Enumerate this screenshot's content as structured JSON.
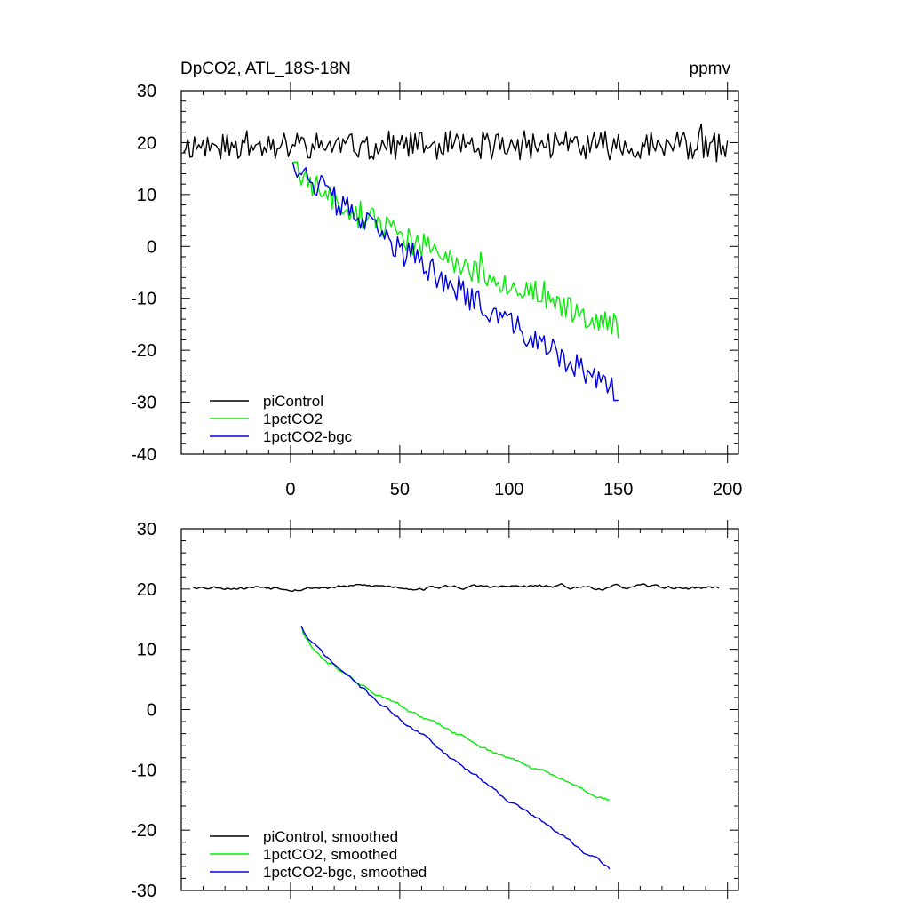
{
  "title_left": "DpCO2, ATL_18S-18N",
  "title_right": "ppmv",
  "chart_data": [
    {
      "type": "line",
      "name": "raw",
      "xlim": [
        -50,
        205
      ],
      "ylim": [
        -40,
        30
      ],
      "y_ticks": [
        30,
        20,
        10,
        0,
        -10,
        -20,
        -30,
        -40
      ],
      "y_tick_labels": [
        "30",
        "20",
        "10",
        "0",
        "-10",
        "-20",
        "-30",
        "-40"
      ],
      "x_ticks": [
        0,
        50,
        100,
        150,
        200
      ],
      "x_tick_labels": [
        "0",
        "50",
        "100",
        "150",
        "200"
      ],
      "legend": [
        "piControl",
        "1pctCO2",
        "1pctCO2-bgc"
      ],
      "series": [
        {
          "name": "piControl",
          "color": "#000000",
          "x_start": -49,
          "x_end": 200,
          "mean": 19.5,
          "amp": 2.8,
          "trend_start": 19.5,
          "trend_end": 19.5,
          "seed": 11
        },
        {
          "name": "1pctCO2",
          "color": "#00ee00",
          "x_start": 1,
          "x_end": 150,
          "start": 17.5,
          "end": -15.5,
          "curve": 0.55,
          "amp": 2.6,
          "seed": 23
        },
        {
          "name": "1pctCO2-bgc",
          "color": "#0000dd",
          "x_start": 1,
          "x_end": 150,
          "start": 17.5,
          "end": -28.5,
          "curve": 0.25,
          "amp": 2.6,
          "seed": 37
        }
      ]
    },
    {
      "type": "line",
      "name": "smoothed",
      "xlim": [
        -50,
        205
      ],
      "ylim": [
        -30,
        30
      ],
      "y_ticks": [
        30,
        20,
        10,
        0,
        -10,
        -20,
        -30
      ],
      "y_tick_labels": [
        "30",
        "20",
        "10",
        "0",
        "-10",
        "-20",
        "-30"
      ],
      "x_ticks": [
        0,
        50,
        100,
        150,
        200
      ],
      "x_tick_labels": [],
      "legend": [
        "piControl, smoothed",
        "1pctCO2, smoothed",
        "1pctCO2-bgc, smoothed"
      ],
      "series": [
        {
          "name": "piControl, smoothed",
          "color": "#000000",
          "x_start": -45,
          "x_end": 196,
          "mean": 19.9,
          "amp": 0.7,
          "trend_start": 20.5,
          "trend_end": 20.2,
          "seed": 53
        },
        {
          "name": "1pctCO2, smoothed",
          "color": "#00ee00",
          "x_start": 5,
          "x_end": 146,
          "start": 14.0,
          "end": -15.0,
          "curve": 0.6,
          "amp": 0.7,
          "seed": 61
        },
        {
          "name": "1pctCO2-bgc, smoothed",
          "color": "#0000dd",
          "x_start": 5,
          "x_end": 146,
          "start": 14.0,
          "end": -26.5,
          "curve": 0.25,
          "amp": 0.7,
          "seed": 71
        }
      ]
    }
  ]
}
